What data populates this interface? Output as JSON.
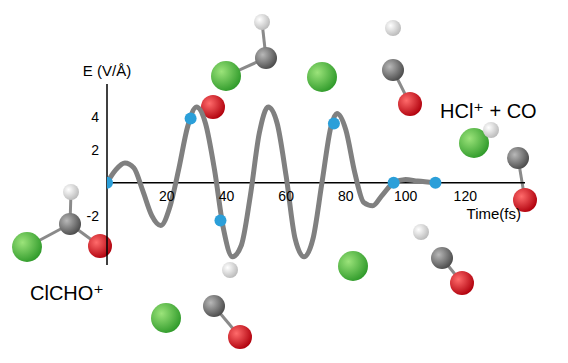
{
  "chart_data": {
    "type": "line",
    "x_label": "Time(fs)",
    "y_label": "E (V/Å)",
    "annotations": [
      "HCl⁺ + CO",
      "ClCHO⁺"
    ],
    "xlim": [
      0,
      140
    ],
    "xticks": [
      20,
      40,
      60,
      80,
      100,
      120
    ],
    "ylim": [
      -5,
      6
    ],
    "yticks": [
      -2,
      2,
      4
    ],
    "grid": false,
    "series": [
      {
        "type": "line",
        "color": "#808080",
        "x": [
          0,
          3,
          6,
          9,
          12,
          15,
          18,
          21,
          24,
          27,
          30,
          33,
          36,
          39,
          42,
          45,
          48,
          51,
          54,
          57,
          60,
          63,
          66,
          69,
          72,
          75,
          77,
          80,
          83,
          86,
          89,
          92,
          96,
          100,
          104,
          110
        ],
        "values": [
          0,
          0.8,
          1.2,
          0.9,
          -0.5,
          -2.0,
          -2.6,
          -1.5,
          0.8,
          3.4,
          4.6,
          3.6,
          0.8,
          -2.8,
          -4.5,
          -3.8,
          -0.8,
          3.0,
          4.6,
          3.6,
          0.4,
          -3.4,
          -4.5,
          -3.4,
          0,
          3.4,
          4.2,
          3.2,
          0.6,
          -1.2,
          -1.4,
          -0.8,
          0,
          0.2,
          0.1,
          0
        ]
      },
      {
        "type": "scatter",
        "color": "#2b9fd9",
        "marker": "circle",
        "x": [
          0,
          28,
          38,
          76,
          96,
          110
        ],
        "values": [
          0,
          3.9,
          -2.3,
          3.6,
          0,
          0
        ]
      }
    ]
  }
}
